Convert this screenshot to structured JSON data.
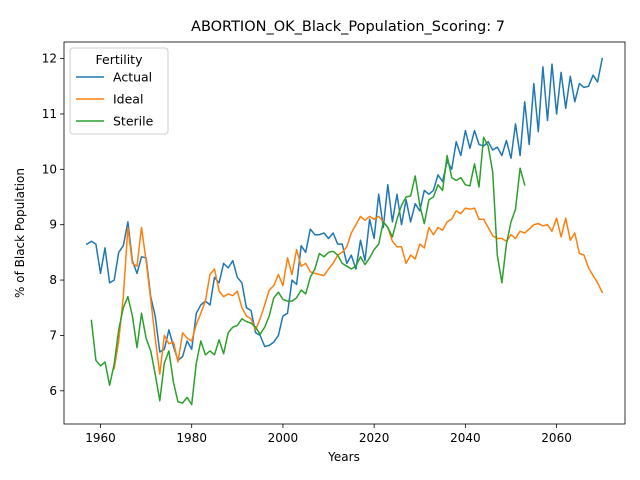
{
  "chart_data": {
    "type": "line",
    "title": "ABORTION_OK_Black_Population_Scoring: 7",
    "xlabel": "Years",
    "ylabel": "% of Black Population",
    "xlim": [
      1952,
      2075
    ],
    "ylim": [
      5.4,
      12.3
    ],
    "xticks": [
      1960,
      1980,
      2000,
      2020,
      2040,
      2060
    ],
    "yticks": [
      6,
      7,
      8,
      9,
      10,
      11,
      12
    ],
    "legend": {
      "title": "Fertility",
      "position": "top-left"
    },
    "grid": false,
    "series": [
      {
        "name": "Actual",
        "color": "#1f77b4",
        "x": [
          1957,
          1958,
          1959,
          1960,
          1961,
          1962,
          1963,
          1964,
          1965,
          1966,
          1967,
          1968,
          1969,
          1970,
          1971,
          1972,
          1973,
          1974,
          1975,
          1976,
          1977,
          1978,
          1979,
          1980,
          1981,
          1982,
          1983,
          1984,
          1985,
          1986,
          1987,
          1988,
          1989,
          1990,
          1991,
          1992,
          1993,
          1994,
          1995,
          1996,
          1997,
          1998,
          1999,
          2000,
          2001,
          2002,
          2003,
          2004,
          2005,
          2006,
          2007,
          2008,
          2009,
          2010,
          2011,
          2012,
          2013,
          2014,
          2015,
          2016,
          2017,
          2018,
          2019,
          2020,
          2021,
          2022,
          2023,
          2024,
          2025,
          2026,
          2027,
          2028,
          2029,
          2030,
          2031,
          2032,
          2033,
          2034,
          2035,
          2036,
          2037,
          2038,
          2039,
          2040,
          2041,
          2042,
          2043,
          2044,
          2045,
          2046,
          2047,
          2048,
          2049,
          2050,
          2051,
          2052,
          2053,
          2054,
          2055,
          2056,
          2057,
          2058,
          2059,
          2060,
          2061,
          2062,
          2063,
          2064,
          2065,
          2066,
          2067,
          2068,
          2069,
          2070
        ],
        "values": [
          8.65,
          8.7,
          8.65,
          8.12,
          8.58,
          7.95,
          8.0,
          8.5,
          8.62,
          9.05,
          8.35,
          8.12,
          8.42,
          8.4,
          7.7,
          7.35,
          6.7,
          6.75,
          7.1,
          6.8,
          6.55,
          6.62,
          6.9,
          6.75,
          7.4,
          7.55,
          7.62,
          7.55,
          8.05,
          7.95,
          8.3,
          8.22,
          8.35,
          8.05,
          7.95,
          7.5,
          7.45,
          7.05,
          7.0,
          6.8,
          6.82,
          6.88,
          7.0,
          7.35,
          7.4,
          8.0,
          7.92,
          8.62,
          8.5,
          8.92,
          8.82,
          8.82,
          8.85,
          8.75,
          8.85,
          8.65,
          8.65,
          8.3,
          8.45,
          8.2,
          8.72,
          8.35,
          9.1,
          8.75,
          9.55,
          8.95,
          9.72,
          9.05,
          9.55,
          9.0,
          9.45,
          9.05,
          9.38,
          9.25,
          9.62,
          9.55,
          9.62,
          9.9,
          9.78,
          10.15,
          10.0,
          10.5,
          10.25,
          10.7,
          10.38,
          10.7,
          10.45,
          10.42,
          10.5,
          10.35,
          10.4,
          10.25,
          10.52,
          10.2,
          10.82,
          10.25,
          11.22,
          10.45,
          11.55,
          10.68,
          11.85,
          10.88,
          11.9,
          11.0,
          11.75,
          11.1,
          11.68,
          11.22,
          11.55,
          11.48,
          11.5,
          11.7,
          11.58,
          12.0
        ]
      },
      {
        "name": "Ideal",
        "color": "#ff7f0e",
        "x": [
          1963,
          1964,
          1965,
          1966,
          1967,
          1968,
          1969,
          1970,
          1971,
          1972,
          1973,
          1974,
          1975,
          1976,
          1977,
          1978,
          1979,
          1980,
          1981,
          1982,
          1983,
          1984,
          1985,
          1986,
          1987,
          1988,
          1989,
          1990,
          1991,
          1992,
          1993,
          1994,
          1995,
          1996,
          1997,
          1998,
          1999,
          2000,
          2001,
          2002,
          2003,
          2004,
          2005,
          2006,
          2007,
          2008,
          2009,
          2010,
          2011,
          2012,
          2013,
          2014,
          2015,
          2016,
          2017,
          2018,
          2019,
          2020,
          2021,
          2022,
          2023,
          2024,
          2025,
          2026,
          2027,
          2028,
          2029,
          2030,
          2031,
          2032,
          2033,
          2034,
          2035,
          2036,
          2037,
          2038,
          2039,
          2040,
          2041,
          2042,
          2043,
          2044,
          2045,
          2046,
          2047,
          2048,
          2049,
          2050,
          2051,
          2052,
          2053,
          2054,
          2055,
          2056,
          2057,
          2058,
          2059,
          2060,
          2061,
          2062,
          2063,
          2064,
          2065,
          2066,
          2067,
          2068,
          2069,
          2070
        ],
        "values": [
          6.4,
          6.9,
          7.7,
          8.95,
          8.3,
          8.25,
          8.95,
          8.35,
          7.65,
          6.95,
          6.3,
          7.0,
          6.85,
          6.88,
          6.52,
          7.05,
          6.95,
          6.9,
          7.2,
          7.4,
          7.62,
          8.1,
          8.2,
          7.8,
          7.7,
          7.75,
          7.72,
          7.8,
          7.5,
          7.35,
          7.3,
          7.1,
          7.3,
          7.55,
          7.82,
          7.9,
          8.1,
          7.9,
          8.4,
          8.1,
          8.55,
          8.25,
          8.3,
          8.15,
          8.12,
          8.1,
          8.08,
          8.2,
          8.3,
          8.45,
          8.5,
          8.6,
          8.85,
          9.0,
          9.15,
          9.08,
          9.15,
          9.1,
          9.15,
          9.05,
          8.95,
          8.7,
          8.6,
          8.6,
          8.3,
          8.45,
          8.38,
          8.65,
          8.58,
          8.95,
          8.82,
          8.95,
          8.9,
          9.05,
          9.1,
          9.25,
          9.2,
          9.3,
          9.28,
          9.3,
          9.1,
          9.1,
          8.95,
          8.8,
          8.75,
          8.75,
          8.7,
          8.82,
          8.75,
          8.88,
          8.85,
          8.92,
          9.0,
          9.02,
          8.98,
          9.0,
          8.88,
          9.12,
          8.78,
          9.12,
          8.72,
          8.85,
          8.48,
          8.45,
          8.22,
          8.08,
          7.95,
          7.78
        ]
      },
      {
        "name": "Sterile",
        "color": "#2ca02c",
        "x": [
          1958,
          1959,
          1960,
          1961,
          1962,
          1963,
          1964,
          1965,
          1966,
          1967,
          1968,
          1969,
          1970,
          1971,
          1972,
          1973,
          1974,
          1975,
          1976,
          1977,
          1978,
          1979,
          1980,
          1981,
          1982,
          1983,
          1984,
          1985,
          1986,
          1987,
          1988,
          1989,
          1990,
          1991,
          1992,
          1993,
          1994,
          1995,
          1996,
          1997,
          1998,
          1999,
          2000,
          2001,
          2002,
          2003,
          2004,
          2005,
          2006,
          2007,
          2008,
          2009,
          2010,
          2011,
          2012,
          2013,
          2014,
          2015,
          2016,
          2017,
          2018,
          2019,
          2020,
          2021,
          2022,
          2023,
          2024,
          2025,
          2026,
          2027,
          2028,
          2029,
          2030,
          2031,
          2032,
          2033,
          2034,
          2035,
          2036,
          2037,
          2038,
          2039,
          2040,
          2041,
          2042,
          2043,
          2044,
          2045,
          2046,
          2047,
          2048,
          2049,
          2050,
          2051,
          2052,
          2053
        ],
        "values": [
          7.27,
          6.55,
          6.45,
          6.52,
          6.1,
          6.48,
          7.1,
          7.5,
          7.7,
          7.35,
          6.78,
          7.4,
          6.95,
          6.72,
          6.3,
          5.82,
          6.5,
          6.72,
          6.15,
          5.8,
          5.78,
          5.88,
          5.75,
          6.5,
          6.9,
          6.65,
          6.72,
          6.65,
          6.92,
          6.67,
          7.05,
          7.15,
          7.18,
          7.3,
          7.25,
          7.22,
          7.15,
          7.02,
          7.15,
          7.35,
          7.68,
          7.78,
          7.65,
          7.62,
          7.62,
          7.68,
          7.82,
          7.75,
          8.05,
          8.2,
          8.48,
          8.42,
          8.5,
          8.52,
          8.45,
          8.3,
          8.25,
          8.2,
          8.25,
          8.42,
          8.28,
          8.4,
          8.55,
          8.65,
          9.05,
          8.95,
          8.78,
          9.1,
          9.35,
          9.5,
          9.52,
          9.88,
          9.35,
          9.02,
          9.45,
          9.5,
          9.72,
          9.62,
          10.25,
          9.85,
          9.8,
          9.85,
          9.72,
          9.7,
          10.1,
          9.68,
          10.58,
          10.42,
          9.95,
          8.45,
          7.95,
          8.65,
          9.05,
          9.28,
          10.02,
          9.72
        ]
      }
    ]
  }
}
